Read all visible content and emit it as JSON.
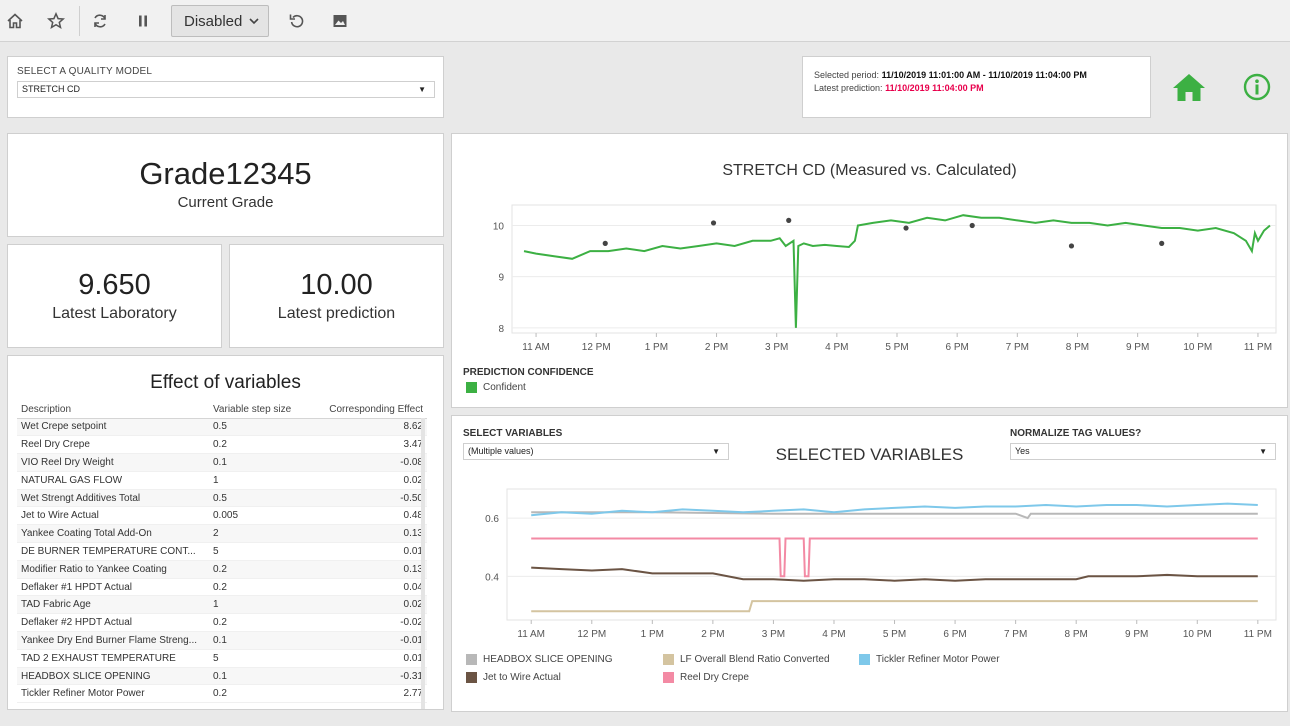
{
  "toolbar": {
    "mode_select": "Disabled",
    "icons": [
      "home-icon",
      "star-icon",
      "refresh-icon",
      "pause-icon",
      "revert-icon",
      "image-icon"
    ]
  },
  "quality_model": {
    "label": "SELECT A QUALITY MODEL",
    "value": "STRETCH CD"
  },
  "period": {
    "selected_label": "Selected period:",
    "selected_value": "11/10/2019 11:01:00 AM - 11/10/2019 11:04:00 PM",
    "prediction_label": "Latest prediction:",
    "prediction_value": "11/10/2019 11:04:00 PM"
  },
  "grade": {
    "value": "Grade12345",
    "label": "Current Grade"
  },
  "laboratory": {
    "value": "9.650",
    "label": "Latest Laboratory"
  },
  "prediction": {
    "value": "10.00",
    "label": "Latest prediction"
  },
  "effects": {
    "title": "Effect of variables",
    "headers": [
      "Description",
      "Variable step size",
      "Corresponding Effect"
    ],
    "rows": [
      [
        "Wet Crepe setpoint",
        "0.5",
        "8.62"
      ],
      [
        "Reel Dry Crepe",
        "0.2",
        "3.47"
      ],
      [
        "VIO Reel Dry Weight",
        "0.1",
        "-0.08"
      ],
      [
        "NATURAL GAS FLOW",
        "1",
        "0.02"
      ],
      [
        "Wet Strengt Additives Total",
        "0.5",
        "-0.50"
      ],
      [
        "Jet to Wire Actual",
        "0.005",
        "0.48"
      ],
      [
        "Yankee Coating Total Add-On",
        "2",
        "0.13"
      ],
      [
        "DE BURNER TEMPERATURE CONT...",
        "5",
        "0.01"
      ],
      [
        "Modifier Ratio to Yankee Coating",
        "0.2",
        "0.13"
      ],
      [
        "Deflaker #1 HPDT Actual",
        "0.2",
        "0.04"
      ],
      [
        "TAD Fabric Age",
        "1",
        "0.02"
      ],
      [
        "Deflaker #2 HPDT Actual",
        "0.2",
        "-0.02"
      ],
      [
        "Yankee Dry End Burner Flame Streng...",
        "0.1",
        "-0.01"
      ],
      [
        "TAD 2 EXHAUST TEMPERATURE",
        "5",
        "0.01"
      ],
      [
        "HEADBOX SLICE OPENING",
        "0.1",
        "-0.31"
      ],
      [
        "Tickler Refiner Motor Power",
        "0.2",
        "2.77"
      ]
    ]
  },
  "chart_data": [
    {
      "type": "line",
      "title": "STRETCH CD (Measured vs. Calculated)",
      "x_ticks": [
        "11 AM",
        "12 PM",
        "1 PM",
        "2 PM",
        "3 PM",
        "4 PM",
        "5 PM",
        "6 PM",
        "7 PM",
        "8 PM",
        "9 PM",
        "10 PM",
        "11 PM"
      ],
      "y_ticks": [
        8,
        9,
        10
      ],
      "ylim": [
        7.9,
        10.4
      ],
      "xlim": [
        10.6,
        23.3
      ],
      "series": [
        {
          "kind": "line",
          "color": "#3cb043",
          "x": [
            10.8,
            11.0,
            11.3,
            11.6,
            11.9,
            12.2,
            12.5,
            12.8,
            13.1,
            13.4,
            13.7,
            14.0,
            14.3,
            14.6,
            14.9,
            15.05,
            15.15,
            15.28,
            15.32,
            15.36,
            15.45,
            15.6,
            15.8,
            16.0,
            16.2,
            16.3,
            16.35,
            16.6,
            16.9,
            17.2,
            17.5,
            17.8,
            18.1,
            18.4,
            18.7,
            19.0,
            19.3,
            19.6,
            19.9,
            20.2,
            20.5,
            20.8,
            21.1,
            21.4,
            21.7,
            22.0,
            22.3,
            22.6,
            22.8,
            22.9,
            22.95,
            23.0,
            23.1,
            23.2
          ],
          "y": [
            9.5,
            9.45,
            9.4,
            9.35,
            9.5,
            9.5,
            9.55,
            9.5,
            9.6,
            9.55,
            9.6,
            9.65,
            9.6,
            9.7,
            9.7,
            9.75,
            9.6,
            9.7,
            8.0,
            9.6,
            9.65,
            9.6,
            9.62,
            9.6,
            9.58,
            9.7,
            10.0,
            10.05,
            10.1,
            10.05,
            10.15,
            10.1,
            10.2,
            10.15,
            10.15,
            10.1,
            10.05,
            10.1,
            10.05,
            10.05,
            10.0,
            10.05,
            10.0,
            9.95,
            9.95,
            9.9,
            9.95,
            9.85,
            9.7,
            9.5,
            9.85,
            9.7,
            9.9,
            10.0
          ]
        },
        {
          "kind": "scatter",
          "color": "#444444",
          "x": [
            12.15,
            13.95,
            15.2,
            17.15,
            18.25,
            19.9,
            21.4
          ],
          "y": [
            9.65,
            10.05,
            10.1,
            9.95,
            10.0,
            9.6,
            9.65
          ]
        }
      ],
      "legend_title": "PREDICTION CONFIDENCE",
      "legend": [
        {
          "name": "Confident",
          "color": "#3cb043"
        }
      ]
    },
    {
      "type": "line",
      "title": "SELECTED VARIABLES",
      "x_ticks": [
        "11 AM",
        "12 PM",
        "1 PM",
        "2 PM",
        "3 PM",
        "4 PM",
        "5 PM",
        "6 PM",
        "7 PM",
        "8 PM",
        "9 PM",
        "10 PM",
        "11 PM"
      ],
      "y_ticks": [
        0.4,
        0.6
      ],
      "ylim": [
        0.25,
        0.7
      ],
      "xlim": [
        10.6,
        23.3
      ],
      "series": [
        {
          "name": "HEADBOX SLICE OPENING",
          "color": "#b8b8b8",
          "x": [
            11.0,
            13.0,
            15.0,
            17.0,
            19.0,
            19.2,
            19.25,
            21.0,
            23.0
          ],
          "y": [
            0.62,
            0.62,
            0.615,
            0.615,
            0.615,
            0.6,
            0.615,
            0.615,
            0.615
          ]
        },
        {
          "name": "LF Overall Blend Ratio Converted",
          "color": "#d4c4a0",
          "x": [
            11.0,
            13.0,
            14.6,
            14.65,
            17.0,
            20.0,
            23.0
          ],
          "y": [
            0.28,
            0.28,
            0.28,
            0.315,
            0.315,
            0.315,
            0.315
          ]
        },
        {
          "name": "Tickler Refiner Motor Power",
          "color": "#7ec8ea",
          "x": [
            11.0,
            11.5,
            12.0,
            12.5,
            13.0,
            13.5,
            14.0,
            14.5,
            15.0,
            15.5,
            16.0,
            16.5,
            17.0,
            17.5,
            18.0,
            18.5,
            19.0,
            19.5,
            20.0,
            20.5,
            21.0,
            21.5,
            22.0,
            22.5,
            23.0
          ],
          "y": [
            0.61,
            0.62,
            0.615,
            0.625,
            0.62,
            0.63,
            0.625,
            0.62,
            0.625,
            0.63,
            0.62,
            0.63,
            0.635,
            0.64,
            0.635,
            0.64,
            0.64,
            0.645,
            0.64,
            0.645,
            0.645,
            0.64,
            0.645,
            0.65,
            0.645
          ]
        },
        {
          "name": "Jet to Wire Actual",
          "color": "#6b5444",
          "x": [
            11.0,
            11.5,
            12.0,
            12.5,
            13.0,
            13.5,
            14.0,
            14.5,
            15.0,
            15.5,
            16.0,
            16.5,
            17.0,
            17.5,
            18.0,
            18.5,
            19.0,
            19.5,
            20.0,
            20.2,
            20.5,
            21.0,
            21.5,
            22.0,
            22.5,
            23.0
          ],
          "y": [
            0.43,
            0.425,
            0.42,
            0.425,
            0.41,
            0.41,
            0.41,
            0.39,
            0.39,
            0.385,
            0.39,
            0.39,
            0.385,
            0.39,
            0.385,
            0.39,
            0.39,
            0.39,
            0.39,
            0.4,
            0.4,
            0.4,
            0.405,
            0.4,
            0.4,
            0.4
          ]
        },
        {
          "name": "Reel Dry Crepe",
          "color": "#f38aa4",
          "x": [
            11.0,
            15.1,
            15.12,
            15.18,
            15.2,
            15.5,
            15.52,
            15.58,
            15.6,
            18.0,
            23.0
          ],
          "y": [
            0.53,
            0.53,
            0.4,
            0.4,
            0.53,
            0.53,
            0.4,
            0.4,
            0.53,
            0.53,
            0.53
          ]
        }
      ]
    }
  ],
  "variables": {
    "select_label": "SELECT VARIABLES",
    "select_value": "(Multiple values)",
    "title": "SELECTED VARIABLES",
    "normalize_label": "NORMALIZE TAG VALUES?",
    "normalize_value": "Yes"
  }
}
